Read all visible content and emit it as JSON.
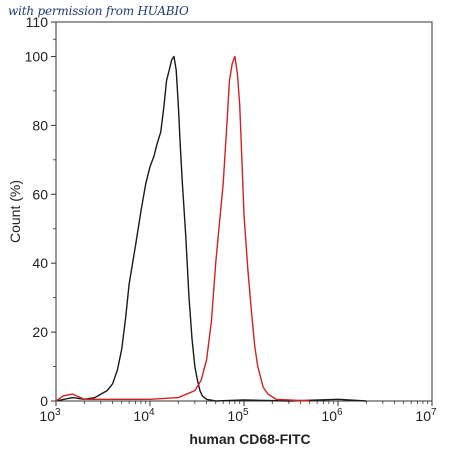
{
  "watermark": "with permission from HUABIO",
  "chart_data": {
    "type": "line",
    "xlabel": "human CD68-FITC",
    "ylabel": "Count  (%)",
    "xscale": "log",
    "xlim": [
      1000,
      10000000
    ],
    "ylim": [
      0,
      110
    ],
    "grid": false,
    "x_ticks": [
      {
        "value": 1000,
        "base": "10",
        "exp": "3"
      },
      {
        "value": 10000,
        "base": "10",
        "exp": "4"
      },
      {
        "value": 100000,
        "base": "10",
        "exp": "5"
      },
      {
        "value": 1000000,
        "base": "10",
        "exp": "6"
      },
      {
        "value": 10000000,
        "base": "10",
        "exp": "7"
      }
    ],
    "y_ticks": [
      0,
      20,
      40,
      60,
      80,
      100,
      110
    ],
    "y_tick_labels": [
      "0",
      "20",
      "40",
      "60",
      "80",
      "100",
      "110"
    ],
    "series": [
      {
        "color": "#1a1a1a",
        "x": [
          1000,
          1500,
          2000,
          2600,
          3000,
          3500,
          4000,
          4500,
          5000,
          5500,
          6000,
          7000,
          8000,
          9000,
          10000,
          11000,
          12000,
          13000,
          14000,
          15000,
          16000,
          17000,
          18000,
          19000,
          20000,
          21000,
          22000,
          24000,
          26000,
          28000,
          30000,
          32000,
          34000,
          36000,
          40000,
          50000,
          100000,
          300000,
          1000000,
          2000000
        ],
        "y": [
          0,
          1,
          0.5,
          1,
          2,
          3,
          5,
          9,
          15,
          24,
          34,
          45,
          55,
          63,
          68,
          71,
          75,
          78,
          85,
          93,
          96,
          99,
          100,
          96,
          86,
          74,
          64,
          48,
          30,
          18,
          10,
          6,
          3,
          1.5,
          0.5,
          0,
          0.3,
          0,
          0.5,
          0
        ]
      },
      {
        "color": "#d42020",
        "x": [
          1000,
          1200,
          1500,
          2000,
          3000,
          5000,
          10000,
          20000,
          30000,
          35000,
          40000,
          45000,
          50000,
          55000,
          60000,
          65000,
          70000,
          75000,
          80000,
          85000,
          90000,
          95000,
          100000,
          110000,
          120000,
          130000,
          140000,
          160000,
          180000,
          220000,
          300000,
          500000
        ],
        "y": [
          0,
          1.5,
          2,
          0.5,
          0.5,
          0.5,
          0.5,
          1,
          3,
          6,
          12,
          23,
          40,
          52,
          63,
          78,
          93,
          98,
          100,
          95,
          86,
          70,
          54,
          38,
          26,
          16,
          10,
          4,
          2,
          0.5,
          0.3,
          0
        ]
      }
    ]
  }
}
